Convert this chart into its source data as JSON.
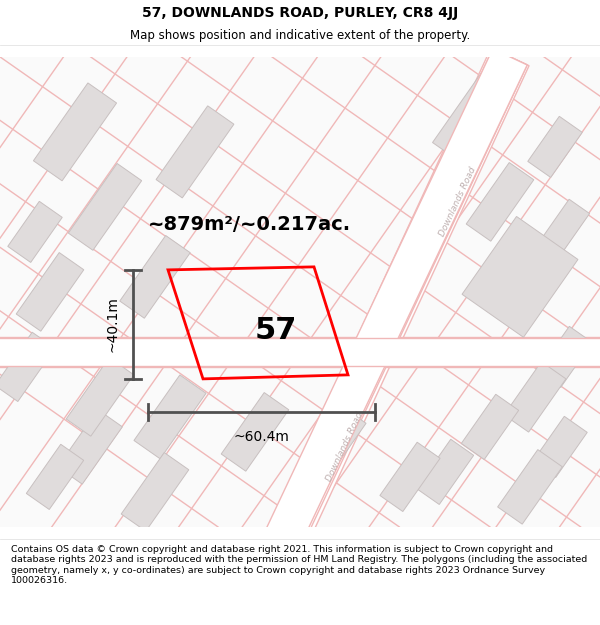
{
  "title": "57, DOWNLANDS ROAD, PURLEY, CR8 4JJ",
  "subtitle": "Map shows position and indicative extent of the property.",
  "footer": "Contains OS data © Crown copyright and database right 2021. This information is subject to Crown copyright and database rights 2023 and is reproduced with the permission of HM Land Registry. The polygons (including the associated geometry, namely x, y co-ordinates) are subject to Crown copyright and database rights 2023 Ordnance Survey 100026316.",
  "area_label": "~879m²/~0.217ac.",
  "width_label": "~60.4m",
  "height_label": "~40.1m",
  "plot_number": "57",
  "bg_color": "#ffffff",
  "map_bg": "#fafafa",
  "road_fill": "#ffffff",
  "road_line": "#f0b8b8",
  "building_fill": "#e0dcdc",
  "building_edge": "#c8c0c0",
  "plot_color": "#ff0000",
  "dim_color": "#505050",
  "road_label_color": "#c0b0b0",
  "title_size": 10,
  "subtitle_size": 8.5,
  "footer_size": 6.8,
  "area_label_size": 14,
  "dim_label_size": 10,
  "plot_num_size": 22,
  "road_lw": 1.0,
  "building_lw": 0.7,
  "plot_lw": 2.0
}
